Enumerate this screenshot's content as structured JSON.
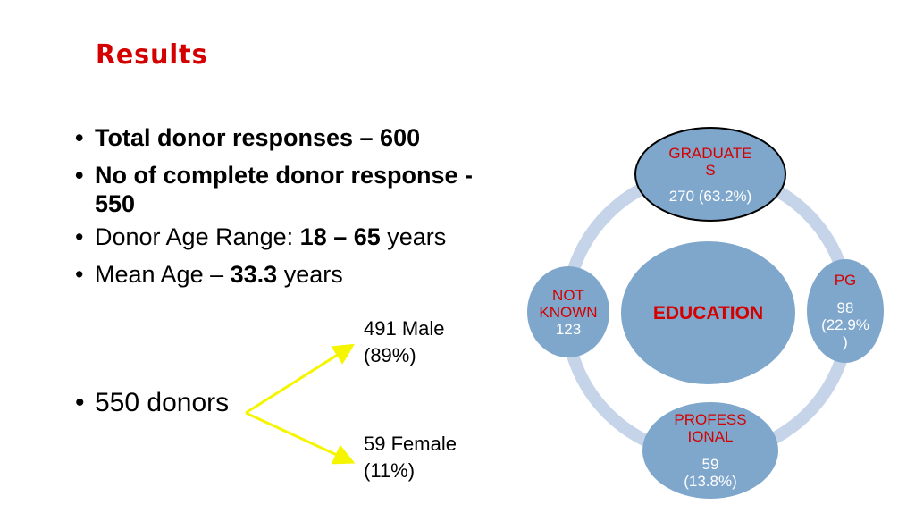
{
  "title": "Results",
  "bullets": [
    {
      "text": "Total donor responses – 600"
    },
    {
      "text": "No of complete donor response - 550"
    },
    {
      "prefix": "Donor Age Range: ",
      "bold": "18 – 65",
      "suffix": " years"
    },
    {
      "prefix": "Mean Age – ",
      "bold": "33.3",
      "suffix": " years"
    }
  ],
  "donors": {
    "label": "550 donors"
  },
  "branches": {
    "male": {
      "line1": "491 Male",
      "line2": "(89%)"
    },
    "female": {
      "line1": "59 Female",
      "line2": "(11%)"
    }
  },
  "education": {
    "center": "EDUCATION",
    "graduates": {
      "label1": "GRADUATE",
      "label2": "S",
      "value": "270  (63.2%)"
    },
    "pg": {
      "label": "PG",
      "value1": "98",
      "value2": "(22.9%",
      "value3": ")"
    },
    "professional": {
      "label1": "PROFESS",
      "label2": "IONAL",
      "value1": "59",
      "value2": "(13.8%)"
    },
    "not_known": {
      "label1": "NOT",
      "label2": "KNOWN",
      "value": "123"
    }
  },
  "colors": {
    "title": "#d40000",
    "node_fill": "#7fa7cb",
    "ring": "#c5d4e8",
    "arrow": "#f5f500"
  }
}
